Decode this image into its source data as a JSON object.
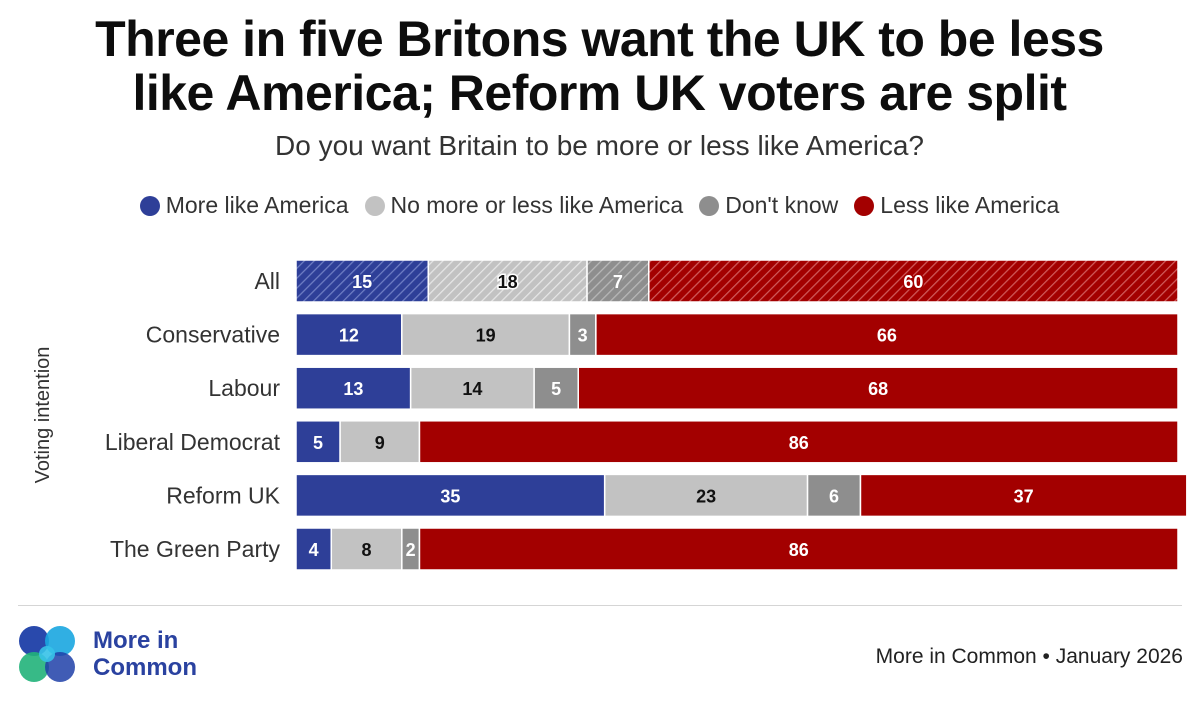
{
  "title_lines": [
    "Three in five Britons want the UK to be less",
    "like America; Reform UK voters are split"
  ],
  "subtitle": "Do you want Britain to be more or less like America?",
  "legend": [
    {
      "label": "More like America",
      "color": "#2e3f98"
    },
    {
      "label": "No more or less like America",
      "color": "#c2c2c2"
    },
    {
      "label": "Don't know",
      "color": "#8e8e8e"
    },
    {
      "label": "Less like America",
      "color": "#a30000"
    }
  ],
  "chart_data": {
    "type": "bar",
    "orientation": "horizontal",
    "stacked": true,
    "ylabel": "Voting intention",
    "xlim": [
      0,
      100
    ],
    "categories": [
      "All",
      "Conservative",
      "Labour",
      "Liberal Democrat",
      "Reform UK",
      "The Green Party"
    ],
    "hatched_categories": [
      "All"
    ],
    "series": [
      {
        "name": "More like America",
        "color": "#2e3f98",
        "label_color": "#ffffff",
        "values": [
          15,
          12,
          13,
          5,
          35,
          4
        ]
      },
      {
        "name": "No more or less like America",
        "color": "#c2c2c2",
        "label_color": "#111111",
        "values": [
          18,
          19,
          14,
          9,
          23,
          8
        ]
      },
      {
        "name": "Don't know",
        "color": "#8e8e8e",
        "label_color": "#ffffff",
        "values": [
          7,
          3,
          5,
          0,
          6,
          2
        ]
      },
      {
        "name": "Less like America",
        "color": "#a30000",
        "label_color": "#ffffff",
        "values": [
          60,
          66,
          68,
          86,
          37,
          86
        ]
      }
    ]
  },
  "logo": {
    "line1": "More in",
    "line2": "Common"
  },
  "source": "More in Common • January 2026"
}
